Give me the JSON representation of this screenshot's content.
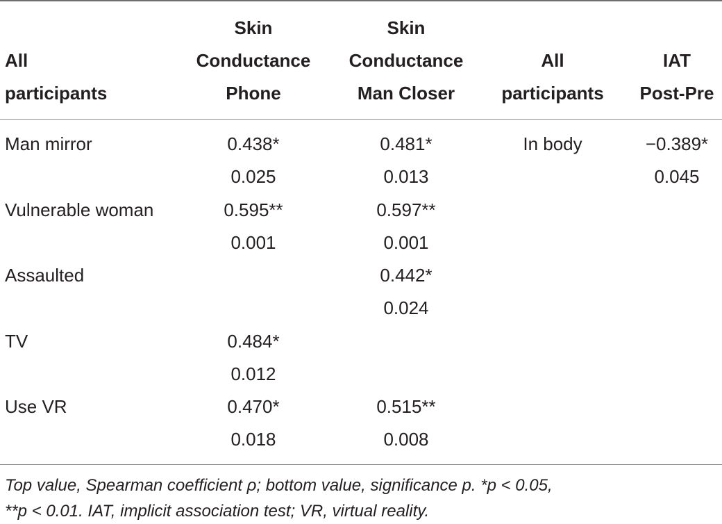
{
  "header": {
    "col1": [
      "All",
      "participants"
    ],
    "col2": [
      "Skin",
      "Conductance",
      "Phone"
    ],
    "col3": [
      "Skin",
      "Conductance",
      "Man Closer"
    ],
    "col4": [
      "All",
      "participants"
    ],
    "col5": [
      "IAT",
      "Post-Pre"
    ]
  },
  "rows": [
    {
      "label": "Man mirror",
      "phone_rho": "0.438*",
      "phone_p": "0.025",
      "closer_rho": "0.481*",
      "closer_p": "0.013",
      "label2": "In body",
      "iat_rho": "−0.389*",
      "iat_p": "0.045"
    },
    {
      "label": "Vulnerable woman",
      "phone_rho": "0.595**",
      "phone_p": "0.001",
      "closer_rho": "0.597**",
      "closer_p": "0.001"
    },
    {
      "label": "Assaulted",
      "closer_rho": "0.442*",
      "closer_p": "0.024"
    },
    {
      "label": "TV",
      "phone_rho": "0.484*",
      "phone_p": "0.012"
    },
    {
      "label": "Use VR",
      "phone_rho": "0.470*",
      "phone_p": "0.018",
      "closer_rho": "0.515**",
      "closer_p": "0.008"
    }
  ],
  "footnote": {
    "line1": "Top value, Spearman coefficient ρ; bottom value, significance p. *p < 0.05,",
    "line2": "**p < 0.01. IAT, implicit association test; VR, virtual reality."
  }
}
